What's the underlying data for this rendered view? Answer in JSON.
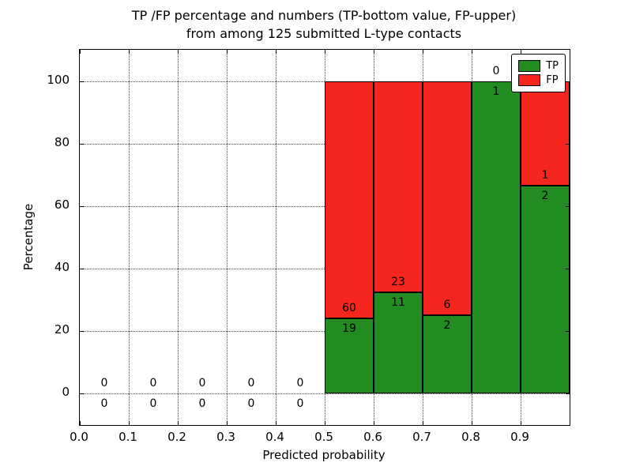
{
  "title_line1": "TP /FP percentage and numbers (TP-bottom value, FP-upper)",
  "title_line2": "from among 125 submitted L-type contacts",
  "xlabel": "Predicted probability",
  "ylabel": "Percentage",
  "legend": {
    "items": [
      {
        "label": "TP",
        "color": "#228b22"
      },
      {
        "label": "FP",
        "color": "#f5261d"
      }
    ]
  },
  "chart_data": {
    "type": "bar",
    "stacked": true,
    "title": "TP /FP percentage and numbers (TP-bottom value, FP-upper) from among 125 submitted L-type contacts",
    "xlabel": "Predicted probability",
    "ylabel": "Percentage",
    "xlim": [
      0.0,
      1.0
    ],
    "ylim": [
      -10,
      110
    ],
    "grid": "dotted",
    "legend_position": "upper right",
    "x_tick_labels": [
      "0.0",
      "0.1",
      "0.2",
      "0.3",
      "0.4",
      "0.5",
      "0.6",
      "0.7",
      "0.8",
      "0.9"
    ],
    "y_tick_labels": [
      "0",
      "20",
      "40",
      "60",
      "80",
      "100"
    ],
    "bin_width": 0.1,
    "bin_starts": [
      0.0,
      0.1,
      0.2,
      0.3,
      0.4,
      0.5,
      0.6,
      0.7,
      0.8,
      0.9
    ],
    "series": [
      {
        "name": "TP",
        "color": "#228b22",
        "counts": [
          0,
          0,
          0,
          0,
          0,
          19,
          11,
          2,
          1,
          2
        ]
      },
      {
        "name": "FP",
        "color": "#f5261d",
        "counts": [
          0,
          0,
          0,
          0,
          0,
          60,
          23,
          6,
          0,
          1
        ]
      }
    ],
    "tp_percent_of_bin": [
      null,
      null,
      null,
      null,
      null,
      24.1,
      32.4,
      25.0,
      100.0,
      66.7
    ],
    "total_submitted": 125
  }
}
